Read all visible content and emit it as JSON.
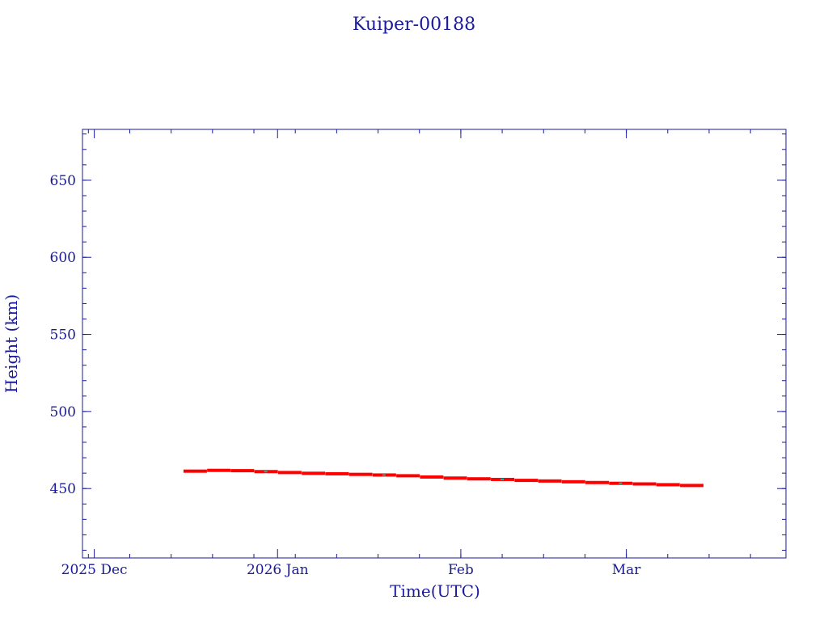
{
  "chart_data": {
    "type": "scatter",
    "title": "Kuiper-00188",
    "xlabel": "Time(UTC)",
    "ylabel": "Height (km)",
    "ylim": [
      405,
      683
    ],
    "xlim": [
      "2025-11-29",
      "2026-03-28"
    ],
    "y_ticks": [
      450,
      500,
      550,
      600,
      650
    ],
    "x_ticks": [
      {
        "date": "2025-12-01",
        "label": "2025 Dec"
      },
      {
        "date": "2026-01-01",
        "label": "2026 Jan"
      },
      {
        "date": "2026-02-01",
        "label": "Feb"
      },
      {
        "date": "2026-03-01",
        "label": "Mar"
      }
    ],
    "grid": false,
    "series": [
      {
        "color": "#ff0000",
        "secondary_color": "#20b2aa",
        "x": [
          "2025-12-18",
          "2025-12-22",
          "2025-12-26",
          "2025-12-30",
          "2026-01-03",
          "2026-01-07",
          "2026-01-11",
          "2026-01-15",
          "2026-01-19",
          "2026-01-23",
          "2026-01-27",
          "2026-01-31",
          "2026-02-04",
          "2026-02-08",
          "2026-02-12",
          "2026-02-16",
          "2026-02-20",
          "2026-02-24",
          "2026-02-28",
          "2026-03-04",
          "2026-03-08",
          "2026-03-12"
        ],
        "values": [
          461.3,
          461.8,
          461.6,
          461.0,
          460.4,
          459.9,
          459.6,
          459.2,
          458.8,
          458.3,
          457.5,
          456.8,
          456.3,
          455.9,
          455.3,
          454.9,
          454.4,
          453.9,
          453.4,
          453.0,
          452.5,
          452.0
        ]
      }
    ]
  }
}
